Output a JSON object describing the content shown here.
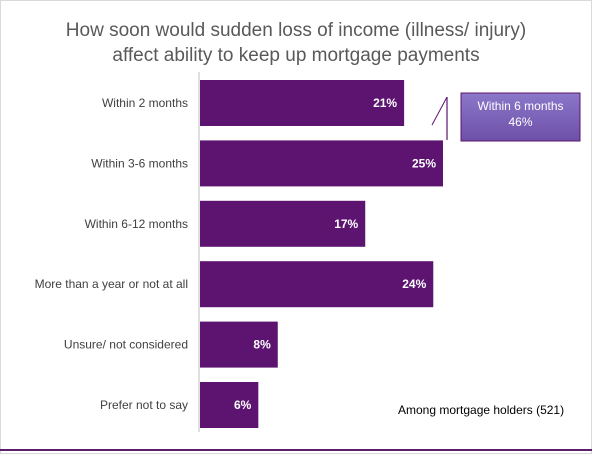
{
  "chart_data": {
    "type": "bar",
    "orientation": "horizontal",
    "title_lines": [
      "How soon would sudden loss of income (illness/ injury)",
      "affect ability to keep up mortgage payments"
    ],
    "categories": [
      "Within 2 months",
      "Within 3-6 months",
      "Within 6-12 months",
      "More than a year or not at all",
      "Unsure/ not considered",
      "Prefer not to say"
    ],
    "values": [
      21,
      25,
      17,
      24,
      8,
      6
    ],
    "value_labels": [
      "21%",
      "25%",
      "17%",
      "24%",
      "8%",
      "6%"
    ],
    "bar_color": "#5c1470",
    "annotation": {
      "line1": "Within 6 months",
      "line2": "46%"
    },
    "footnote": "Among mortgage holders (521)"
  }
}
